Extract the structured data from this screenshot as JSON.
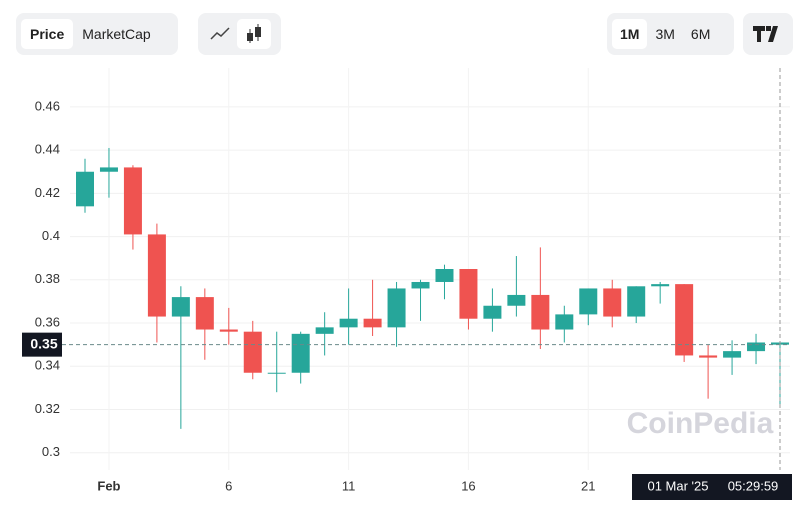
{
  "toolbar": {
    "metrics": [
      "Price",
      "MarketCap"
    ],
    "ranges": [
      "1M",
      "3M",
      "6M"
    ]
  },
  "chart_data": {
    "type": "candlestick",
    "categories": [
      null,
      "Feb",
      null,
      null,
      null,
      null,
      "6",
      null,
      null,
      null,
      null,
      "11",
      null,
      null,
      null,
      null,
      "16",
      null,
      null,
      null,
      null,
      "21",
      null,
      null,
      null,
      null,
      null,
      null,
      null,
      null
    ],
    "open": [
      0.414,
      0.43,
      0.432,
      0.401,
      0.363,
      0.372,
      0.357,
      0.356,
      0.337,
      0.337,
      0.355,
      0.358,
      0.362,
      0.358,
      0.376,
      0.379,
      0.385,
      0.362,
      0.368,
      0.373,
      0.357,
      0.364,
      0.376,
      0.363,
      0.377,
      0.378,
      0.345,
      0.344,
      0.347,
      0.35
    ],
    "high": [
      0.436,
      0.441,
      0.433,
      0.406,
      0.377,
      0.376,
      0.367,
      0.361,
      0.356,
      0.356,
      0.365,
      0.376,
      0.38,
      0.379,
      0.38,
      0.387,
      0.385,
      0.376,
      0.391,
      0.395,
      0.368,
      0.376,
      0.38,
      0.377,
      0.379,
      0.378,
      0.35,
      0.352,
      0.355,
      0.351
    ],
    "low": [
      0.411,
      0.418,
      0.394,
      0.351,
      0.311,
      0.343,
      0.35,
      0.334,
      0.328,
      0.332,
      0.345,
      0.35,
      0.354,
      0.349,
      0.361,
      0.371,
      0.357,
      0.356,
      0.363,
      0.348,
      0.351,
      0.359,
      0.358,
      0.36,
      0.369,
      0.342,
      0.325,
      0.336,
      0.341,
      0.321
    ],
    "close": [
      0.43,
      0.432,
      0.401,
      0.363,
      0.372,
      0.357,
      0.356,
      0.337,
      0.337,
      0.355,
      0.358,
      0.362,
      0.358,
      0.376,
      0.379,
      0.385,
      0.362,
      0.368,
      0.373,
      0.357,
      0.364,
      0.376,
      0.363,
      0.377,
      0.378,
      0.345,
      0.344,
      0.347,
      0.351,
      0.351
    ],
    "up_color": "#26a69a",
    "down_color": "#ef5350",
    "ylim": [
      0.292,
      0.478
    ],
    "yticks": [
      0.3,
      0.32,
      0.34,
      0.36,
      0.38,
      0.4,
      0.42,
      0.44,
      0.46
    ],
    "grid": true,
    "crosshair_price": 0.35,
    "crosshair_time": "01 Mar '25",
    "crosshair_clock": "05:29:59",
    "watermark": "CoinPedia"
  }
}
